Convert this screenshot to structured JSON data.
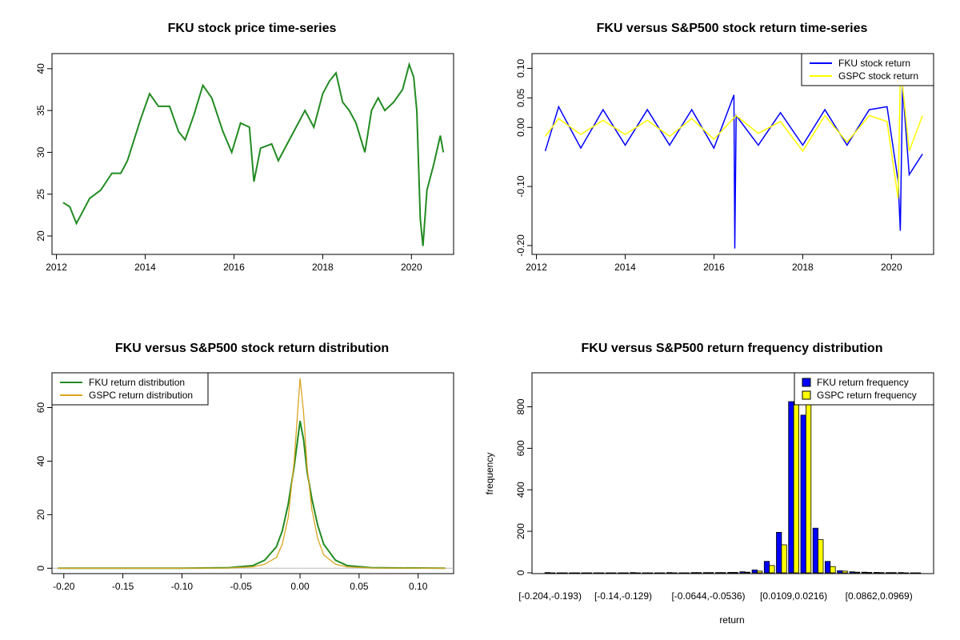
{
  "chart_data": [
    {
      "type": "line",
      "title": "FKU stock price time-series",
      "xlabel": "",
      "ylabel": "",
      "xlim": [
        2011.9,
        2020.95
      ],
      "ylim": [
        17.8,
        41.8
      ],
      "x_ticks": [
        "2012",
        "2014",
        "2016",
        "2018",
        "2020"
      ],
      "y_ticks": [
        "20",
        "25",
        "30",
        "35",
        "40"
      ],
      "series": [
        {
          "color": "#228B22",
          "x": [
            2012.15,
            2012.3,
            2012.45,
            2012.55,
            2012.75,
            2013.0,
            2013.25,
            2013.45,
            2013.6,
            2013.75,
            2013.9,
            2014.1,
            2014.3,
            2014.55,
            2014.75,
            2014.9,
            2015.1,
            2015.3,
            2015.5,
            2015.75,
            2015.95,
            2016.15,
            2016.35,
            2016.45,
            2016.6,
            2016.85,
            2017.0,
            2017.2,
            2017.4,
            2017.6,
            2017.8,
            2018.0,
            2018.15,
            2018.3,
            2018.45,
            2018.6,
            2018.75,
            2018.95,
            2019.1,
            2019.25,
            2019.4,
            2019.6,
            2019.8,
            2019.95,
            2020.05,
            2020.12,
            2020.2,
            2020.26,
            2020.35,
            2020.5,
            2020.65,
            2020.72
          ],
          "y": [
            24.0,
            23.5,
            21.5,
            22.5,
            24.5,
            25.5,
            27.5,
            27.5,
            29.0,
            31.5,
            34.0,
            37.0,
            35.5,
            35.5,
            32.5,
            31.5,
            34.5,
            38.0,
            36.5,
            32.5,
            30.0,
            33.5,
            33.0,
            26.5,
            30.5,
            31.0,
            29.0,
            31.0,
            33.0,
            35.0,
            33.0,
            37.0,
            38.5,
            39.5,
            36.0,
            35.0,
            33.5,
            30.0,
            35.0,
            36.5,
            35.0,
            36.0,
            37.5,
            40.5,
            39.0,
            35.0,
            22.0,
            18.8,
            25.5,
            28.5,
            32.0,
            30.0
          ]
        }
      ]
    },
    {
      "type": "line",
      "title": "FKU versus S&P500 stock return time-series",
      "xlabel": "",
      "ylabel": "",
      "xlim": [
        2011.9,
        2020.95
      ],
      "ylim": [
        -0.215,
        0.125
      ],
      "x_ticks": [
        "2012",
        "2014",
        "2016",
        "2018",
        "2020"
      ],
      "y_ticks": [
        "-0.20",
        "-0.10",
        "0.00",
        "0.05",
        "0.10"
      ],
      "legend_position": "top-right",
      "series": [
        {
          "name": "FKU stock return",
          "color": "#0000FF",
          "x": [
            2012.2,
            2012.5,
            2013.0,
            2013.5,
            2014.0,
            2014.5,
            2015.0,
            2015.5,
            2016.0,
            2016.45,
            2016.47,
            2016.5,
            2017.0,
            2017.5,
            2018.0,
            2018.5,
            2019.0,
            2019.5,
            2019.9,
            2020.15,
            2020.2,
            2020.25,
            2020.4,
            2020.7
          ],
          "y": [
            -0.04,
            0.035,
            -0.035,
            0.03,
            -0.03,
            0.03,
            -0.03,
            0.03,
            -0.035,
            0.055,
            -0.205,
            0.02,
            -0.03,
            0.025,
            -0.03,
            0.03,
            -0.03,
            0.03,
            0.035,
            -0.09,
            -0.175,
            0.07,
            -0.08,
            -0.045
          ]
        },
        {
          "name": "GSPC stock return",
          "color": "#FFFF00",
          "x": [
            2012.2,
            2012.5,
            2013.0,
            2013.5,
            2014.0,
            2014.5,
            2015.0,
            2015.5,
            2016.0,
            2016.5,
            2017.0,
            2017.5,
            2018.0,
            2018.5,
            2019.0,
            2019.5,
            2019.9,
            2020.15,
            2020.2,
            2020.25,
            2020.4,
            2020.7
          ],
          "y": [
            -0.015,
            0.015,
            -0.012,
            0.012,
            -0.012,
            0.012,
            -0.015,
            0.015,
            -0.02,
            0.02,
            -0.01,
            0.01,
            -0.04,
            0.02,
            -0.025,
            0.02,
            0.01,
            -0.12,
            0.09,
            0.07,
            -0.04,
            0.02
          ]
        }
      ]
    },
    {
      "type": "line",
      "title": "FKU versus S&P500 stock return distribution",
      "xlabel": "",
      "ylabel": "",
      "xlim": [
        -0.21,
        0.13
      ],
      "ylim": [
        -2,
        73
      ],
      "x_ticks": [
        "-0.20",
        "-0.15",
        "-0.10",
        "-0.05",
        "0.00",
        "0.05",
        "0.10"
      ],
      "y_ticks": [
        "0",
        "20",
        "40",
        "60"
      ],
      "legend_position": "top-left",
      "series": [
        {
          "name": "FKU return distribution",
          "color": "#228B22",
          "x": [
            -0.205,
            -0.1,
            -0.06,
            -0.04,
            -0.03,
            -0.02,
            -0.015,
            -0.01,
            -0.005,
            0.0,
            0.003,
            0.006,
            0.01,
            0.015,
            0.02,
            0.03,
            0.04,
            0.06,
            0.123
          ],
          "y": [
            0,
            0,
            0.2,
            1,
            3,
            8,
            14,
            24,
            38,
            55,
            48,
            36,
            26,
            16,
            9,
            3,
            1,
            0.2,
            0
          ]
        },
        {
          "name": "GSPC return distribution",
          "color": "#DAA520",
          "x": [
            -0.205,
            -0.1,
            -0.06,
            -0.04,
            -0.03,
            -0.02,
            -0.015,
            -0.01,
            -0.005,
            0.0,
            0.003,
            0.006,
            0.01,
            0.015,
            0.02,
            0.03,
            0.04,
            0.06,
            0.123
          ],
          "y": [
            0,
            0,
            0.1,
            0.5,
            1.5,
            4,
            9,
            19,
            40,
            71,
            58,
            38,
            22,
            11,
            5,
            1.5,
            0.5,
            0.1,
            0
          ]
        }
      ]
    },
    {
      "type": "bar",
      "title": "FKU versus S&P500 return frequency distribution",
      "xlabel": "return",
      "ylabel": "frequency",
      "ylim": [
        0,
        960
      ],
      "y_ticks": [
        "0",
        "200",
        "400",
        "600",
        "800"
      ],
      "category_tick_labels": [
        "[-0.204,-0.193)",
        "[-0.14,-0.129)",
        "[-0.0644,-0.0536)",
        "[0.0109,0.0216)",
        "[0.0862,0.0969)"
      ],
      "legend_position": "top-right",
      "series": [
        {
          "name": "FKU return frequency",
          "color": "#0000FF",
          "values": [
            1,
            0,
            0,
            0,
            0,
            0,
            0,
            1,
            0,
            0,
            1,
            0,
            1,
            1,
            1,
            2,
            5,
            14,
            55,
            195,
            825,
            760,
            215,
            55,
            10,
            5,
            3,
            2,
            1,
            1,
            0
          ]
        },
        {
          "name": "GSPC return frequency",
          "color": "#FFFF00",
          "values": [
            0,
            0,
            0,
            0,
            0,
            0,
            0,
            0,
            0,
            0,
            0,
            0,
            1,
            1,
            1,
            2,
            3,
            8,
            35,
            135,
            820,
            1000,
            160,
            30,
            8,
            3,
            2,
            1,
            1,
            0,
            0
          ]
        }
      ]
    }
  ]
}
